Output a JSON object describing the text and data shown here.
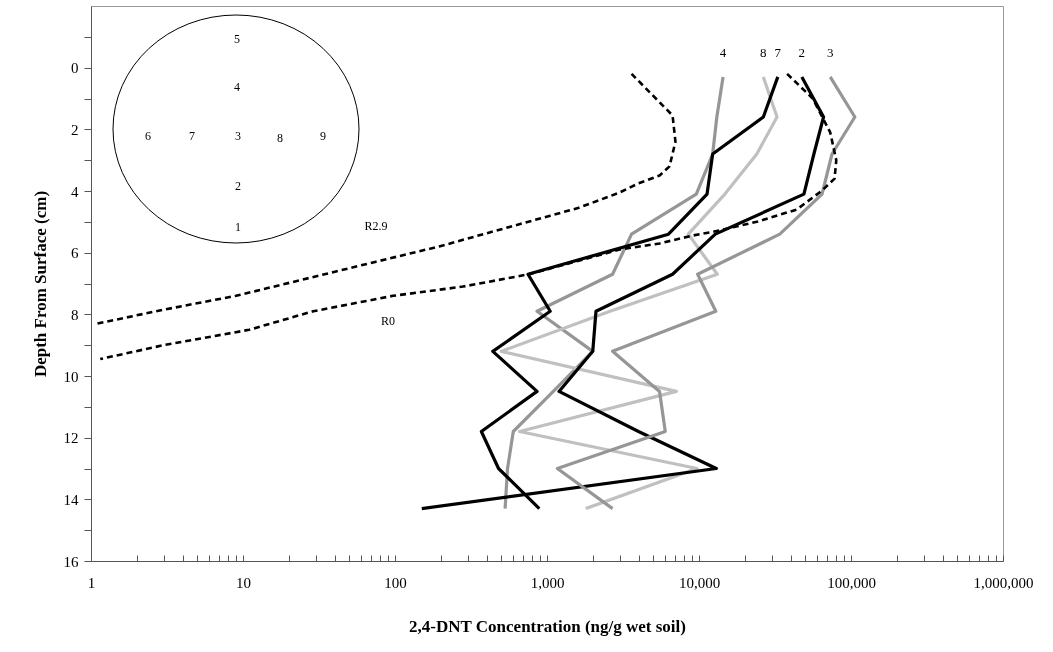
{
  "chart_data": {
    "type": "line",
    "xlabel": "2,4-DNT Concentration (ng/g wet soil)",
    "ylabel": "Depth From Surface (cm)",
    "log": "x",
    "xlim": [
      1,
      1000000
    ],
    "ylim": [
      16,
      -2
    ],
    "xticks": [
      1,
      {
        "value": 2,
        "label": null
      },
      {
        "value": 3,
        "label": null
      },
      {
        "value": 4,
        "label": null
      },
      {
        "value": 5,
        "label": null
      },
      {
        "value": 6,
        "label": null
      },
      {
        "value": 7,
        "label": null
      },
      {
        "value": 8,
        "label": null
      },
      {
        "value": 9,
        "label": null
      },
      10,
      {
        "value": 20,
        "label": null
      },
      {
        "value": 30,
        "label": null
      },
      {
        "value": 40,
        "label": null
      },
      {
        "value": 50,
        "label": null
      },
      {
        "value": 60,
        "label": null
      },
      {
        "value": 70,
        "label": null
      },
      {
        "value": 80,
        "label": null
      },
      {
        "value": 90,
        "label": null
      },
      100,
      {
        "value": 200,
        "label": null
      },
      {
        "value": 300,
        "label": null
      },
      {
        "value": 400,
        "label": null
      },
      {
        "value": 500,
        "label": null
      },
      {
        "value": 600,
        "label": null
      },
      {
        "value": 700,
        "label": null
      },
      {
        "value": 800,
        "label": null
      },
      {
        "value": 900,
        "label": null
      },
      {
        "value": 1000,
        "label": "1,000"
      },
      {
        "value": 2000,
        "label": null
      },
      {
        "value": 3000,
        "label": null
      },
      {
        "value": 4000,
        "label": null
      },
      {
        "value": 5000,
        "label": null
      },
      {
        "value": 6000,
        "label": null
      },
      {
        "value": 7000,
        "label": null
      },
      {
        "value": 8000,
        "label": null
      },
      {
        "value": 9000,
        "label": null
      },
      {
        "value": 10000,
        "label": "10,000"
      },
      {
        "value": 20000,
        "label": null
      },
      {
        "value": 30000,
        "label": null
      },
      {
        "value": 40000,
        "label": null
      },
      {
        "value": 50000,
        "label": null
      },
      {
        "value": 60000,
        "label": null
      },
      {
        "value": 70000,
        "label": null
      },
      {
        "value": 80000,
        "label": null
      },
      {
        "value": 90000,
        "label": null
      },
      {
        "value": 100000,
        "label": "100,000"
      },
      {
        "value": 200000,
        "label": null
      },
      {
        "value": 300000,
        "label": null
      },
      {
        "value": 400000,
        "label": null
      },
      {
        "value": 500000,
        "label": null
      },
      {
        "value": 600000,
        "label": null
      },
      {
        "value": 700000,
        "label": null
      },
      {
        "value": 800000,
        "label": null
      },
      {
        "value": 900000,
        "label": null
      },
      {
        "value": 1000000,
        "label": "1,000,000"
      }
    ],
    "yticks": [
      {
        "value": -1,
        "label": null
      },
      0,
      {
        "value": 1,
        "label": null
      },
      2,
      {
        "value": 3,
        "label": null
      },
      4,
      {
        "value": 5,
        "label": null
      },
      6,
      {
        "value": 7,
        "label": null
      },
      8,
      {
        "value": 9,
        "label": null
      },
      10,
      {
        "value": 11,
        "label": null
      },
      12,
      {
        "value": 13,
        "label": null
      },
      14,
      {
        "value": 15,
        "label": null
      },
      16
    ],
    "grid": false,
    "marker": "none",
    "line_style": "solid",
    "series": [
      {
        "name": "4",
        "color": "#969696",
        "x": [
          14400,
          13100,
          12300,
          9600,
          3600,
          2700,
          860,
          2000,
          1100,
          600,
          550,
          530
        ],
        "values": [
          0.3,
          1.6,
          2.8,
          4.1,
          5.4,
          6.7,
          7.9,
          9.2,
          10.5,
          11.8,
          13.0,
          14.3
        ]
      },
      {
        "name": "8",
        "color": "#c0c0c0",
        "x": [
          26500,
          32600,
          24000,
          14800,
          8500,
          13200,
          2600,
          500,
          7100,
          660,
          9700,
          1800
        ],
        "values": [
          0.3,
          1.6,
          2.8,
          4.1,
          5.4,
          6.7,
          7.9,
          9.2,
          10.5,
          11.8,
          13.0,
          14.3
        ]
      },
      {
        "name": "7",
        "color": "#000000",
        "x": [
          33000,
          26500,
          12300,
          11300,
          6300,
          750,
          1050,
          440,
          860,
          370,
          480,
          890
        ],
        "values": [
          0.3,
          1.6,
          2.8,
          4.1,
          5.4,
          6.7,
          7.9,
          9.2,
          10.5,
          11.8,
          13.0,
          14.3
        ]
      },
      {
        "name": "2",
        "color": "#000000",
        "x": [
          47500,
          66000,
          57000,
          49000,
          12800,
          6700,
          2100,
          2000,
          1200,
          4000,
          13000,
          150
        ],
        "values": [
          0.3,
          1.6,
          2.8,
          4.1,
          5.4,
          6.7,
          7.9,
          9.2,
          10.5,
          11.8,
          13.0,
          14.3
        ]
      },
      {
        "name": "3",
        "color": "#969696",
        "x": [
          73000,
          106000,
          75000,
          64500,
          34000,
          9800,
          12900,
          2700,
          5500,
          6000,
          1170,
          2700
        ],
        "values": [
          0.3,
          1.6,
          2.8,
          4.1,
          5.4,
          6.7,
          7.9,
          9.2,
          10.5,
          11.8,
          13.0,
          14.3
        ]
      },
      {
        "color": "#000000",
        "line_style": "dashed",
        "x": [
          3600,
          6700,
          7000,
          6400,
          5500,
          4000,
          3000,
          2200,
          1600,
          1050,
          195,
          74,
          9,
          3,
          1.1
        ],
        "values": [
          0.2,
          1.55,
          2.4,
          3.2,
          3.5,
          3.75,
          4.05,
          4.3,
          4.55,
          4.8,
          5.8,
          6.3,
          7.4,
          7.85,
          8.3
        ]
      },
      {
        "color": "#000000",
        "line_style": "dashed",
        "x": [
          38000,
          56000,
          73000,
          80000,
          78000,
          64000,
          44000,
          24000,
          13000,
          9000,
          5500,
          3000,
          760,
          280,
          97,
          29,
          11,
          3,
          1.15
        ],
        "values": [
          0.2,
          1.0,
          2.1,
          3.0,
          3.6,
          4.0,
          4.6,
          5.0,
          5.3,
          5.45,
          5.7,
          5.9,
          6.7,
          7.1,
          7.4,
          7.9,
          8.5,
          9.0,
          9.45
        ]
      }
    ],
    "annotations": [
      "5",
      "4",
      "6",
      "7",
      "3",
      "8",
      "9",
      "2",
      "1",
      "R2.9",
      "R0"
    ]
  }
}
